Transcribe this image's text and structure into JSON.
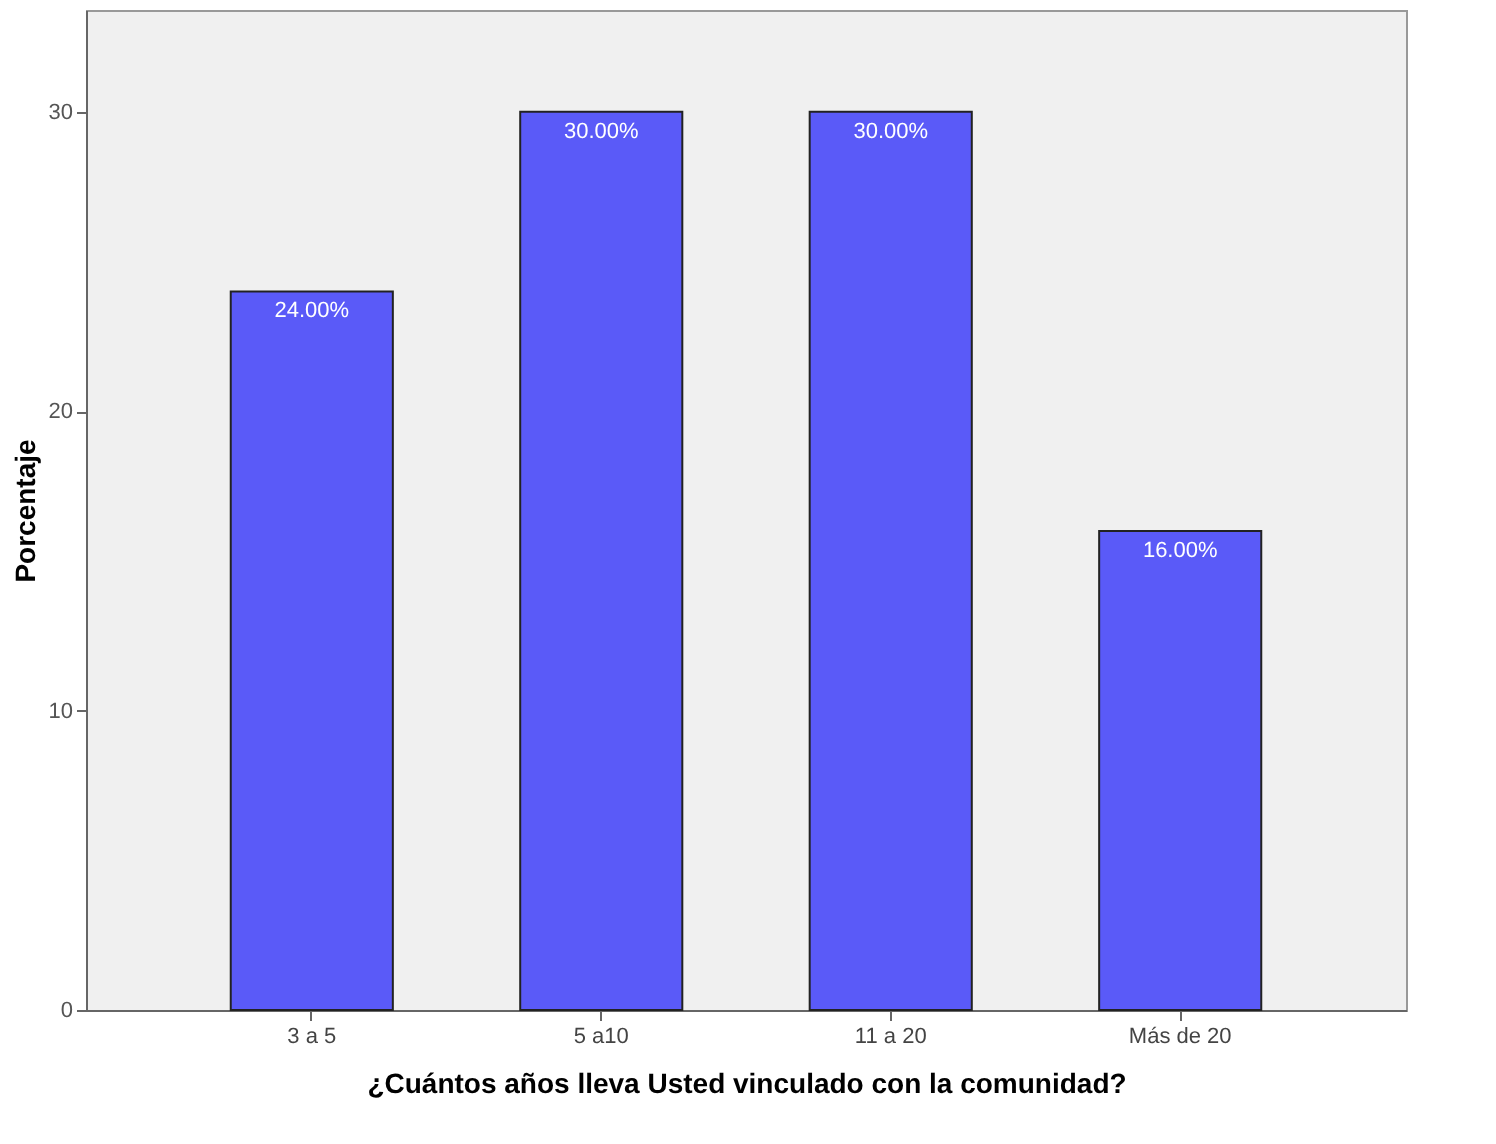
{
  "chart_data": {
    "type": "bar",
    "xlabel": "¿Cuántos años lleva Usted vinculado con la comunidad?",
    "ylabel": "Porcentaje",
    "categories": [
      "3 a 5",
      "5 a10",
      "11 a 20",
      "Más de 20"
    ],
    "values": [
      24,
      30,
      30,
      16
    ],
    "value_labels": [
      "24.00%",
      "30.00%",
      "30.00%",
      "16.00%"
    ],
    "color": "#5a5af8",
    "ylim": [
      0,
      33.4
    ],
    "yticks": [
      0,
      10,
      20,
      30
    ],
    "grid": false
  }
}
